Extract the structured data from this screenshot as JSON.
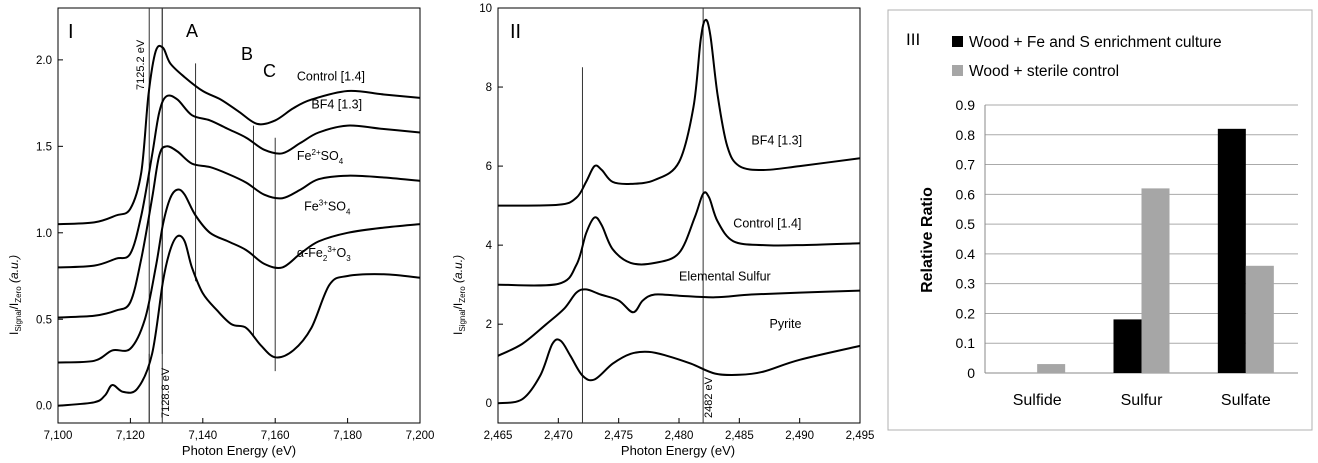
{
  "chart_data": [
    {
      "panel": "I",
      "type": "line",
      "xlabel": "Photon Energy (eV)",
      "ylabel": "I_Signal/I_Zero (a.u.)",
      "xlim": [
        7100,
        7200
      ],
      "ylim": [
        -0.1,
        2.3
      ],
      "xticks": [
        7100,
        7120,
        7140,
        7160,
        7180,
        7200
      ],
      "xtick_labels": [
        "7,100",
        "7,120",
        "7,140",
        "7,160",
        "7,180",
        "7,200"
      ],
      "yticks": [
        0.0,
        0.5,
        1.0,
        1.5,
        2.0
      ],
      "ytick_labels": [
        "0.0",
        "0.5",
        "1.0",
        "1.5",
        "2.0"
      ],
      "annotations": {
        "line1": "7125.2 eV",
        "line2": "7128.8 eV",
        "A": "A",
        "B": "B",
        "C": "C"
      },
      "reference_lines": [
        7125.2,
        7128.8,
        7138,
        7154,
        7160
      ],
      "series": [
        {
          "name": "Control [1.4]",
          "label_main": "Control [1.4]",
          "x": [
            7100,
            7110,
            7116,
            7120,
            7123,
            7125,
            7127,
            7129,
            7131,
            7135,
            7140,
            7145,
            7150,
            7155,
            7160,
            7165,
            7170,
            7180,
            7190,
            7200
          ],
          "y": [
            1.05,
            1.06,
            1.1,
            1.14,
            1.35,
            1.8,
            2.05,
            2.07,
            1.98,
            1.9,
            1.82,
            1.77,
            1.7,
            1.63,
            1.65,
            1.72,
            1.77,
            1.82,
            1.8,
            1.78
          ]
        },
        {
          "name": "BF4 [1.3]",
          "label_main": "BF4 [1.3]",
          "x": [
            7100,
            7110,
            7116,
            7120,
            7123,
            7126,
            7128,
            7130,
            7133,
            7137,
            7142,
            7147,
            7152,
            7157,
            7162,
            7167,
            7172,
            7180,
            7190,
            7200
          ],
          "y": [
            0.8,
            0.81,
            0.85,
            0.88,
            1.1,
            1.45,
            1.7,
            1.79,
            1.77,
            1.68,
            1.65,
            1.6,
            1.55,
            1.48,
            1.46,
            1.52,
            1.58,
            1.62,
            1.6,
            1.58
          ]
        },
        {
          "name": "Fe2+SO4",
          "label_main": "Fe",
          "label_sup": "2+",
          "label_rest": "SO",
          "label_sub": "4",
          "x": [
            7100,
            7110,
            7116,
            7120,
            7123,
            7126,
            7128,
            7130,
            7133,
            7137,
            7142,
            7147,
            7152,
            7157,
            7162,
            7167,
            7172,
            7180,
            7190,
            7200
          ],
          "y": [
            0.51,
            0.52,
            0.55,
            0.6,
            0.85,
            1.2,
            1.45,
            1.5,
            1.47,
            1.4,
            1.38,
            1.34,
            1.29,
            1.22,
            1.2,
            1.25,
            1.31,
            1.33,
            1.32,
            1.3
          ]
        },
        {
          "name": "Fe3+SO4",
          "label_main": "Fe",
          "label_sup": "3+",
          "label_rest": "SO",
          "label_sub": "4",
          "x": [
            7100,
            7110,
            7115,
            7120,
            7124,
            7127,
            7129,
            7131,
            7133,
            7135,
            7138,
            7142,
            7147,
            7152,
            7157,
            7162,
            7167,
            7172,
            7180,
            7190,
            7200
          ],
          "y": [
            0.25,
            0.26,
            0.32,
            0.33,
            0.5,
            0.8,
            1.05,
            1.2,
            1.25,
            1.22,
            1.1,
            1.0,
            0.95,
            0.9,
            0.82,
            0.8,
            0.88,
            0.95,
            1.0,
            1.03,
            1.05
          ]
        },
        {
          "name": "α-Fe2 3+O3",
          "label_main": "α-Fe",
          "label_sub": "2",
          "label_sup": "3+",
          "label_rest": "O",
          "label_sub2": "3",
          "x": [
            7100,
            7110,
            7113,
            7115,
            7118,
            7122,
            7126,
            7129,
            7131,
            7133,
            7135,
            7137,
            7140,
            7144,
            7148,
            7152,
            7156,
            7160,
            7165,
            7170,
            7175,
            7180,
            7190,
            7200
          ],
          "y": [
            0.0,
            0.02,
            0.06,
            0.12,
            0.08,
            0.1,
            0.3,
            0.72,
            0.9,
            0.98,
            0.95,
            0.8,
            0.65,
            0.55,
            0.47,
            0.45,
            0.35,
            0.28,
            0.32,
            0.45,
            0.7,
            0.75,
            0.76,
            0.74
          ]
        }
      ]
    },
    {
      "panel": "II",
      "type": "line",
      "xlabel": "Photon Energy (eV)",
      "ylabel": "I_Signal/I_Zero (a.u.)",
      "xlim": [
        2465,
        2495
      ],
      "ylim": [
        -0.5,
        10
      ],
      "xticks": [
        2465,
        2470,
        2475,
        2480,
        2485,
        2490,
        2495
      ],
      "xtick_labels": [
        "2,465",
        "2,470",
        "2,475",
        "2,480",
        "2,485",
        "2,490",
        "2,495"
      ],
      "yticks": [
        0,
        2,
        4,
        6,
        8,
        10
      ],
      "ytick_labels": [
        "0",
        "2",
        "4",
        "6",
        "8",
        "10"
      ],
      "annotations": {
        "line2": "2482 eV"
      },
      "reference_lines": [
        2472,
        2482
      ],
      "series": [
        {
          "name": "BF4 [1.3]",
          "x": [
            2465,
            2470,
            2471.5,
            2472.3,
            2473,
            2473.6,
            2474.5,
            2476,
            2478,
            2480,
            2481.2,
            2481.8,
            2482.2,
            2482.6,
            2483.2,
            2484,
            2485,
            2487,
            2490,
            2495
          ],
          "y": [
            5.0,
            5.02,
            5.2,
            5.6,
            6.0,
            5.9,
            5.6,
            5.55,
            5.65,
            6.1,
            7.5,
            9.2,
            9.7,
            9.3,
            7.8,
            6.5,
            6.0,
            5.9,
            6.0,
            6.2
          ]
        },
        {
          "name": "Control [1.4]",
          "x": [
            2465,
            2470,
            2471.5,
            2472.3,
            2473,
            2473.6,
            2474.5,
            2476,
            2478,
            2480,
            2481.3,
            2482,
            2482.5,
            2483.2,
            2484.5,
            2487,
            2490,
            2495
          ],
          "y": [
            3.0,
            3.02,
            3.5,
            4.3,
            4.7,
            4.5,
            3.9,
            3.55,
            3.55,
            3.8,
            4.7,
            5.3,
            5.2,
            4.6,
            4.1,
            4.0,
            4.0,
            4.05
          ]
        },
        {
          "name": "Elemental Sulfur",
          "x": [
            2465,
            2467,
            2469,
            2470.5,
            2471.5,
            2472.3,
            2473.5,
            2475,
            2476.2,
            2477,
            2478,
            2480,
            2483,
            2486,
            2490,
            2495
          ],
          "y": [
            1.2,
            1.5,
            2.0,
            2.4,
            2.8,
            2.88,
            2.75,
            2.6,
            2.3,
            2.6,
            2.75,
            2.72,
            2.68,
            2.75,
            2.8,
            2.85
          ]
        },
        {
          "name": "Pyrite",
          "x": [
            2465,
            2467,
            2468.5,
            2469.5,
            2470.2,
            2471,
            2472,
            2473,
            2474.5,
            2476,
            2477.5,
            2479,
            2481,
            2483,
            2485,
            2487,
            2490,
            2495
          ],
          "y": [
            0.0,
            0.1,
            0.7,
            1.5,
            1.58,
            1.2,
            0.7,
            0.6,
            1.0,
            1.25,
            1.3,
            1.2,
            1.0,
            0.75,
            0.72,
            0.8,
            1.1,
            1.45
          ]
        }
      ]
    },
    {
      "panel": "III",
      "type": "bar",
      "categories": [
        "Sulfide",
        "Sulfur",
        "Sulfate"
      ],
      "series": [
        {
          "name": "Wood + Fe and S enrichment culture",
          "color": "#000000",
          "values": [
            0,
            0.18,
            0.82
          ]
        },
        {
          "name": "Wood + sterile control",
          "color": "#a6a6a6",
          "values": [
            0.03,
            0.62,
            0.36
          ]
        }
      ],
      "ylabel": "Relative Ratio",
      "ylim": [
        0,
        0.9
      ],
      "yticks": [
        0,
        0.1,
        0.2,
        0.3,
        0.4,
        0.5,
        0.6,
        0.7,
        0.8,
        0.9
      ],
      "ytick_labels": [
        "0",
        "0.1",
        "0.2",
        "0.3",
        "0.4",
        "0.5",
        "0.6",
        "0.7",
        "0.8",
        "0.9"
      ],
      "grid": true,
      "legend": "top"
    }
  ]
}
